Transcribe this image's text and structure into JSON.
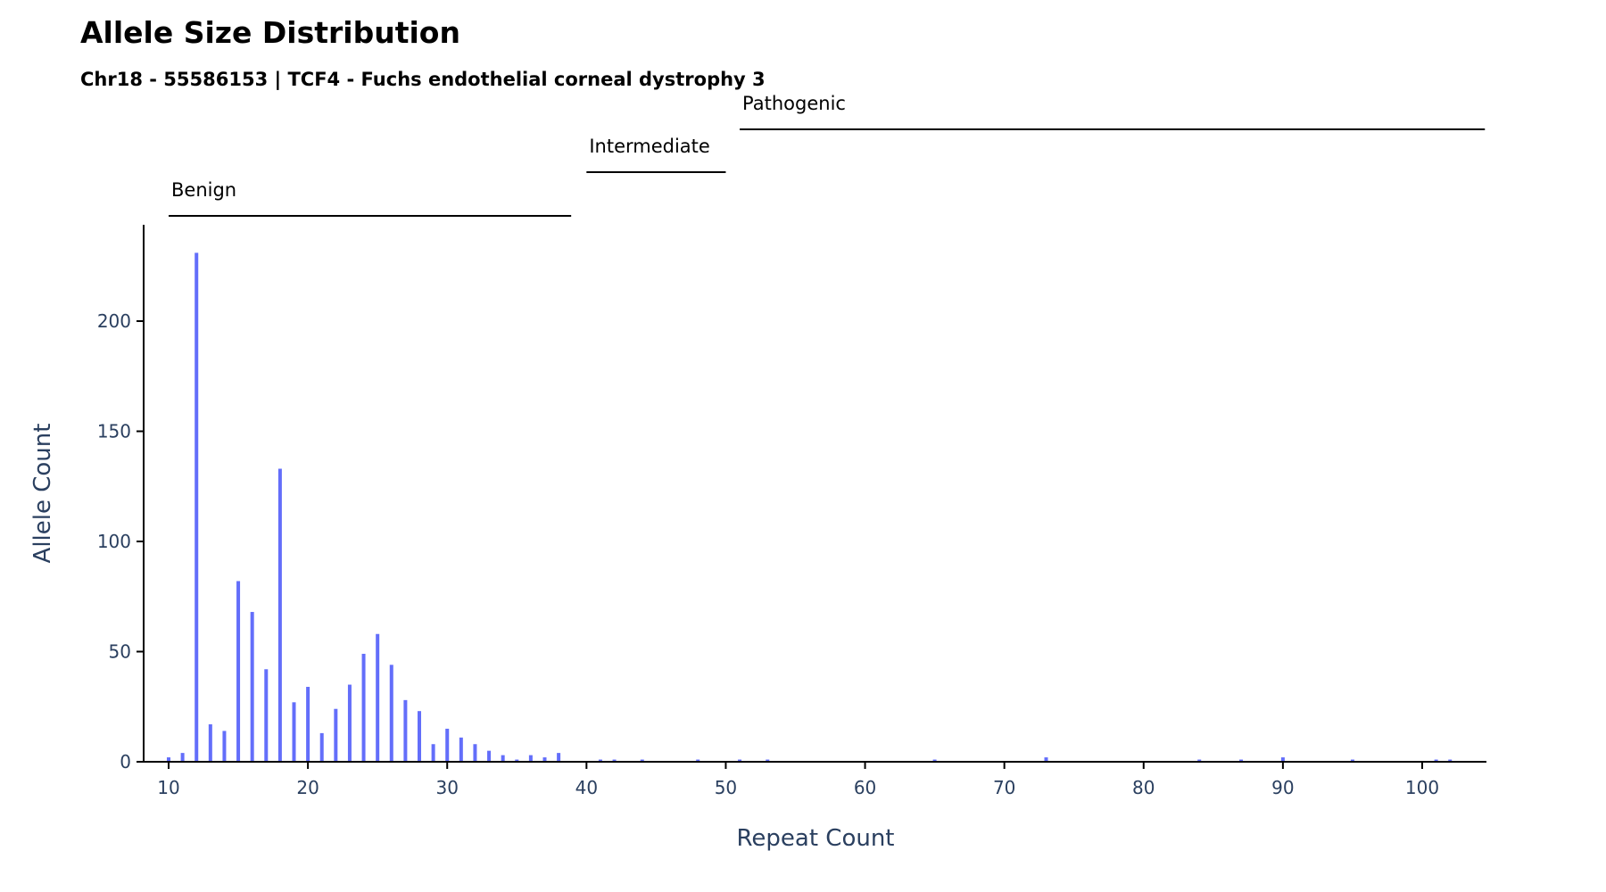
{
  "chart_data": {
    "type": "bar",
    "title": "Allele Size Distribution",
    "subtitle": "Chr18 - 55586153 | TCF4 - Fuchs endothelial corneal dystrophy 3",
    "xlabel": "Repeat Count",
    "ylabel": "Allele Count",
    "xlim": [
      8.8,
      104.5
    ],
    "ylim": [
      0,
      243
    ],
    "xticks": [
      10,
      20,
      30,
      40,
      50,
      60,
      70,
      80,
      90,
      100
    ],
    "yticks": [
      0,
      50,
      100,
      150,
      200
    ],
    "bar_color": "#636efa",
    "grid": false,
    "series": [
      {
        "x": [
          10,
          11,
          12,
          13,
          14,
          15,
          16,
          17,
          18,
          19,
          20,
          21,
          22,
          23,
          24,
          25,
          26,
          27,
          28,
          29,
          30,
          31,
          32,
          33,
          34,
          35,
          36,
          37,
          38,
          41,
          42,
          44,
          48,
          51,
          53,
          65,
          73,
          84,
          87,
          90,
          95,
          101,
          102
        ],
        "y": [
          2,
          4,
          231,
          17,
          14,
          82,
          68,
          42,
          133,
          27,
          34,
          13,
          24,
          35,
          49,
          58,
          44,
          28,
          23,
          8,
          15,
          11,
          8,
          5,
          3,
          1,
          3,
          2,
          4,
          1,
          1,
          1,
          1,
          1,
          1,
          1,
          2,
          1,
          1,
          2,
          1,
          1,
          1
        ]
      }
    ],
    "ranges": [
      {
        "label": "Benign",
        "start": 10,
        "end": 38.9
      },
      {
        "label": "Intermediate",
        "start": 40,
        "end": 50
      },
      {
        "label": "Pathogenic",
        "start": 51,
        "end": 104.5
      }
    ]
  }
}
